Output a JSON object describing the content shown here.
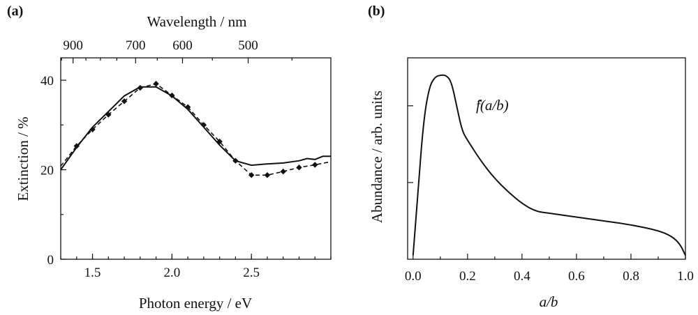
{
  "chart_data": [
    {
      "panel": "(a)",
      "type": "line",
      "xlabel": "Photon energy / eV",
      "ylabel": "Extinction / %",
      "top_xlabel": "Wavelength / nm",
      "xlim": [
        1.3,
        3.0
      ],
      "ylim": [
        0,
        45
      ],
      "x_ticks": [
        1.5,
        2.0,
        2.5
      ],
      "y_ticks": [
        0,
        20,
        40
      ],
      "top_ticks": [
        {
          "label": "900",
          "value": 900
        },
        {
          "label": "700",
          "value": 700
        },
        {
          "label": "600",
          "value": 600
        },
        {
          "label": "500",
          "value": 500
        }
      ],
      "top_minor_ticks": [
        1000,
        950,
        850,
        800,
        750,
        650,
        550,
        450
      ],
      "series": [
        {
          "style": "solid",
          "x": [
            1.3,
            1.4,
            1.5,
            1.6,
            1.7,
            1.8,
            1.9,
            2.0,
            2.1,
            2.2,
            2.3,
            2.4,
            2.5,
            2.6,
            2.7,
            2.8,
            2.85,
            2.9,
            2.95,
            3.0
          ],
          "y": [
            20.0,
            25.0,
            29.5,
            33.0,
            36.5,
            38.5,
            38.5,
            36.5,
            33.5,
            29.5,
            25.5,
            22.0,
            21.0,
            21.3,
            21.5,
            22.0,
            22.5,
            22.3,
            23.0,
            23.0
          ]
        },
        {
          "style": "dashed-markers",
          "x": [
            1.3,
            1.4,
            1.5,
            1.6,
            1.7,
            1.8,
            1.9,
            2.0,
            2.1,
            2.2,
            2.3,
            2.4,
            2.5,
            2.6,
            2.7,
            2.8,
            2.9,
            3.0
          ],
          "y": [
            20.8,
            25.3,
            29.0,
            32.3,
            35.3,
            38.3,
            39.2,
            36.6,
            34.0,
            30.0,
            26.3,
            22.0,
            18.8,
            18.8,
            19.6,
            20.5,
            21.1,
            21.8
          ]
        }
      ]
    },
    {
      "panel": "(b)",
      "type": "line",
      "xlabel": "a/b",
      "ylabel": "Abundance / arb. units",
      "xlim": [
        -0.02,
        1.0
      ],
      "ylim": [
        0,
        1.05
      ],
      "x_ticks": [
        0.0,
        0.2,
        0.4,
        0.6,
        0.8,
        1.0
      ],
      "y_ticks": [
        0.4,
        0.8
      ],
      "annotation": "̂f(a/b)",
      "series": [
        {
          "style": "solid",
          "x": [
            0.0,
            0.02,
            0.04,
            0.06,
            0.08,
            0.1,
            0.12,
            0.14,
            0.16,
            0.18,
            0.2,
            0.25,
            0.3,
            0.35,
            0.4,
            0.45,
            0.5,
            0.6,
            0.7,
            0.8,
            0.9,
            0.95,
            0.98,
            1.0
          ],
          "y": [
            0.02,
            0.4,
            0.74,
            0.9,
            0.95,
            0.96,
            0.96,
            0.93,
            0.8,
            0.67,
            0.62,
            0.51,
            0.42,
            0.35,
            0.29,
            0.25,
            0.24,
            0.22,
            0.2,
            0.18,
            0.15,
            0.12,
            0.08,
            0.02
          ]
        }
      ]
    }
  ]
}
